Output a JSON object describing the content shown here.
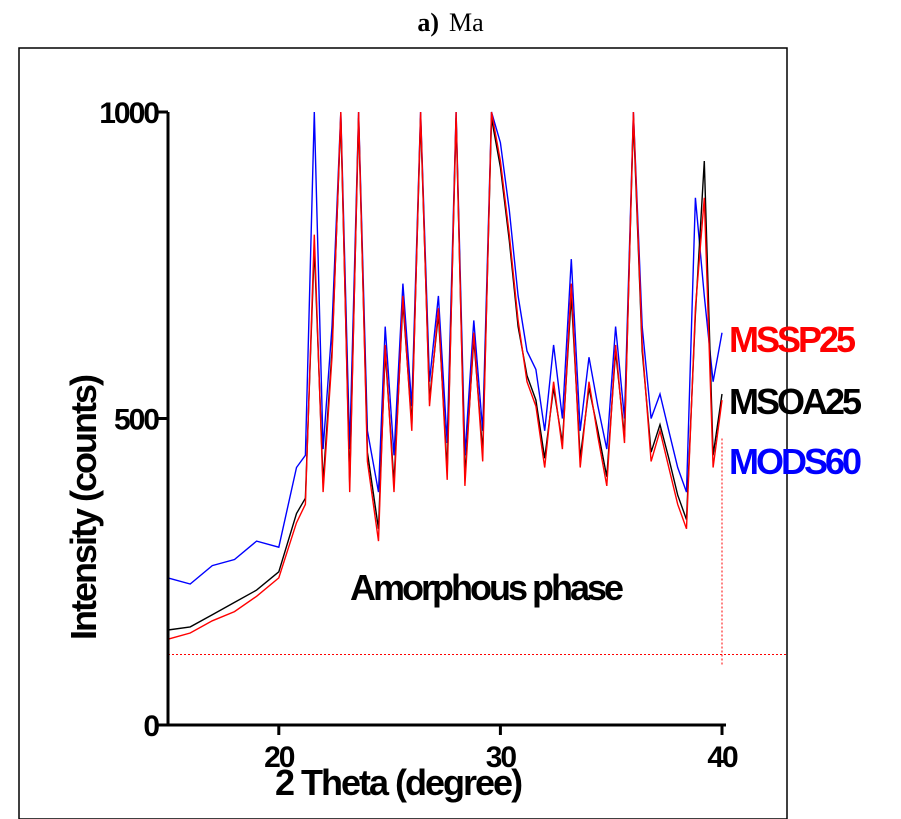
{
  "panel": {
    "letter": "a)",
    "name": "Ma"
  },
  "chart_data": {
    "type": "line",
    "title": "",
    "xlabel": "2 Theta (degree)",
    "ylabel": "Intensity (counts)",
    "xlim": [
      15,
      40
    ],
    "ylim": [
      0,
      1000
    ],
    "xticks": [
      20,
      30,
      40
    ],
    "yticks": [
      0,
      500,
      1000
    ],
    "grid": false,
    "legend_position": "right",
    "annotation": "Amorphous phase",
    "baseline": {
      "y": 115,
      "x_end": 40,
      "color": "#ff0000",
      "style": "dotted"
    },
    "series": [
      {
        "name": "MSSP25",
        "color": "#ff0000",
        "x": [
          15,
          16,
          17,
          18,
          19,
          20,
          20.8,
          21.2,
          21.6,
          22.0,
          22.4,
          22.8,
          23.2,
          23.6,
          24.0,
          24.5,
          24.8,
          25.2,
          25.6,
          26.0,
          26.4,
          26.8,
          27.2,
          27.6,
          28.0,
          28.4,
          28.8,
          29.2,
          29.6,
          30.0,
          30.4,
          30.8,
          31.2,
          31.6,
          32.0,
          32.4,
          32.8,
          33.2,
          33.6,
          34.0,
          34.4,
          34.8,
          35.2,
          35.6,
          36.0,
          36.4,
          36.8,
          37.2,
          37.6,
          38.0,
          38.4,
          38.8,
          39.2,
          39.6,
          40.0
        ],
        "values": [
          140,
          150,
          170,
          185,
          210,
          240,
          330,
          360,
          800,
          380,
          600,
          1000,
          380,
          1000,
          430,
          300,
          620,
          380,
          700,
          480,
          1000,
          520,
          680,
          400,
          1000,
          390,
          640,
          430,
          1000,
          920,
          800,
          660,
          560,
          520,
          420,
          560,
          450,
          720,
          420,
          560,
          470,
          390,
          620,
          460,
          1000,
          620,
          430,
          480,
          420,
          360,
          320,
          680,
          860,
          420,
          530
        ]
      },
      {
        "name": "MSOA25",
        "color": "#000000",
        "x": [
          15,
          16,
          17,
          18,
          19,
          20,
          20.8,
          21.2,
          21.6,
          22.0,
          22.4,
          22.8,
          23.2,
          23.6,
          24.0,
          24.5,
          24.8,
          25.2,
          25.6,
          26.0,
          26.4,
          26.8,
          27.2,
          27.6,
          28.0,
          28.4,
          28.8,
          29.2,
          29.6,
          30.0,
          30.4,
          30.8,
          31.2,
          31.6,
          32.0,
          32.4,
          32.8,
          33.2,
          33.6,
          34.0,
          34.4,
          34.8,
          35.2,
          35.6,
          36.0,
          36.4,
          36.8,
          37.2,
          37.6,
          38.0,
          38.4,
          38.8,
          39.2,
          39.6,
          40.0
        ],
        "values": [
          155,
          160,
          180,
          200,
          220,
          250,
          345,
          370,
          780,
          395,
          610,
          990,
          395,
          990,
          445,
          320,
          610,
          395,
          690,
          490,
          990,
          530,
          670,
          415,
          990,
          405,
          630,
          445,
          990,
          910,
          790,
          650,
          570,
          530,
          435,
          550,
          460,
          700,
          435,
          550,
          480,
          405,
          610,
          470,
          990,
          610,
          445,
          490,
          435,
          375,
          335,
          670,
          920,
          440,
          540
        ]
      },
      {
        "name": "MODS60",
        "color": "#0000ff",
        "x": [
          15,
          16,
          17,
          18,
          19,
          20,
          20.8,
          21.2,
          21.6,
          22.0,
          22.4,
          22.8,
          23.2,
          23.6,
          24.0,
          24.5,
          24.8,
          25.2,
          25.6,
          26.0,
          26.4,
          26.8,
          27.2,
          27.6,
          28.0,
          28.4,
          28.8,
          29.2,
          29.6,
          30.0,
          30.4,
          30.8,
          31.2,
          31.6,
          32.0,
          32.4,
          32.8,
          33.2,
          33.6,
          34.0,
          34.4,
          34.8,
          35.2,
          35.6,
          36.0,
          36.4,
          36.8,
          37.2,
          37.6,
          38.0,
          38.4,
          38.8,
          39.2,
          39.6,
          40.0
        ],
        "values": [
          240,
          230,
          260,
          270,
          300,
          290,
          420,
          440,
          1000,
          450,
          650,
          1000,
          450,
          1000,
          480,
          380,
          650,
          440,
          720,
          520,
          1000,
          560,
          700,
          460,
          1000,
          440,
          660,
          480,
          1000,
          950,
          840,
          700,
          610,
          580,
          480,
          620,
          500,
          760,
          480,
          600,
          520,
          450,
          650,
          500,
          1000,
          650,
          500,
          540,
          480,
          420,
          380,
          860,
          700,
          560,
          640
        ]
      }
    ]
  }
}
